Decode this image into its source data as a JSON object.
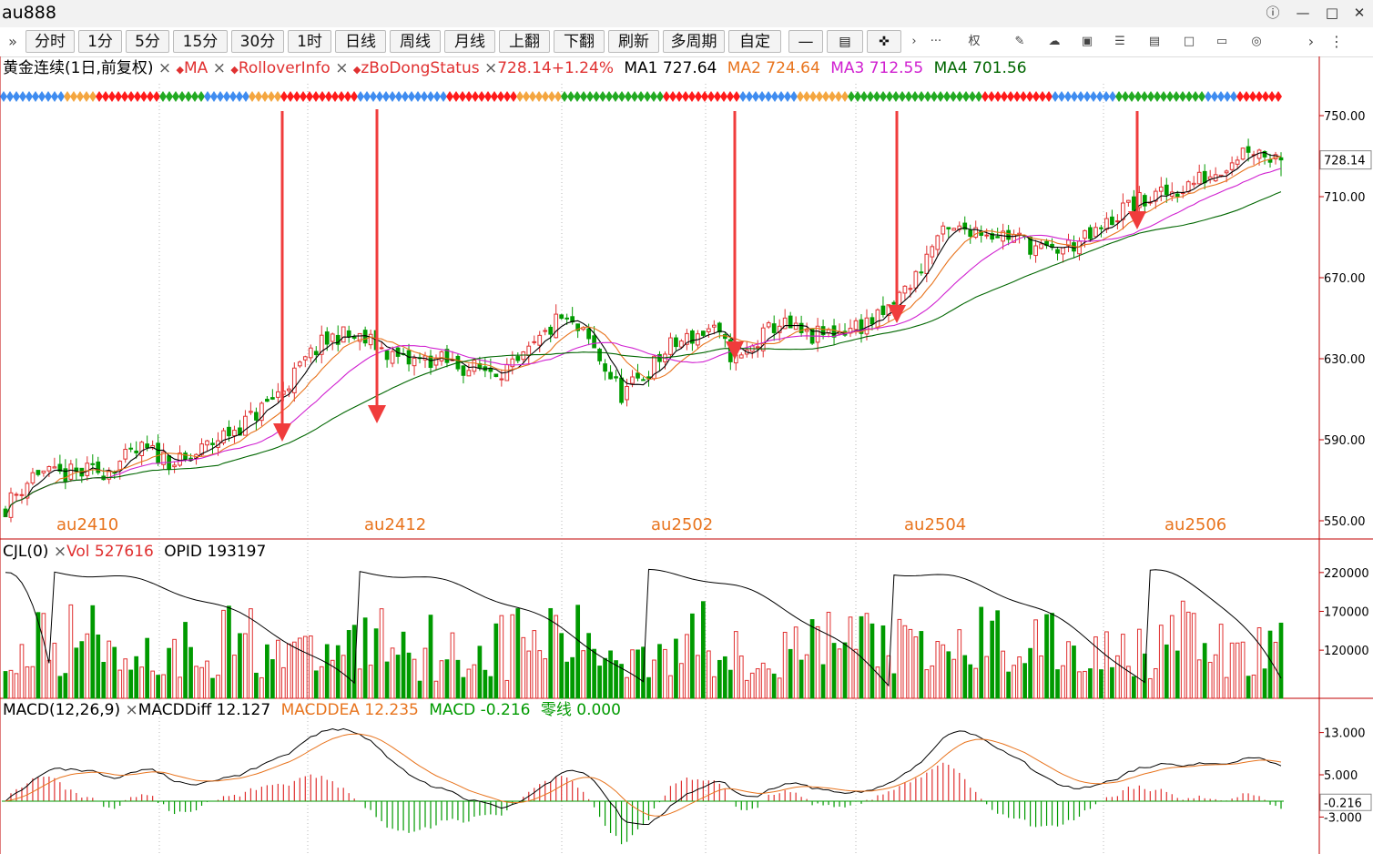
{
  "window": {
    "title": "au888"
  },
  "toolbar": {
    "expand_icon": "double-chevron-right-icon",
    "periods": [
      "分时",
      "1分",
      "5分",
      "15分",
      "30分",
      "1时",
      "日线",
      "周线",
      "月线",
      "上翻",
      "下翻",
      "刷新",
      "多周期",
      "自定"
    ],
    "tools": [
      "line-tool-icon",
      "bar-tool-icon",
      "eraser-tool-icon",
      "chevron-right-icon",
      "more-icon",
      "权",
      "pen-icon",
      "cloud-icon",
      "screenshot-icon",
      "settings-icon",
      "document-icon",
      "window-icon",
      "trash-icon",
      "target-icon",
      "chevron-right-icon",
      "more-vertical-icon"
    ],
    "quan_label": "权"
  },
  "main_legend": {
    "name": "黄金连续(1日,前复权)",
    "close_x": "×",
    "ind1": "MA",
    "ind2": "RolloverInfo",
    "ind3": "zBoDongStatus",
    "price_change": "728.14+1.24%",
    "ma1": "MA1 727.64",
    "ma2": "MA2 724.64",
    "ma3": "MA3 712.55",
    "ma4": "MA4 701.56"
  },
  "vol_legend": {
    "name": "CJL(0)",
    "close_x": "×",
    "vol": "Vol 527616",
    "opid": "OPID 193197"
  },
  "macd_legend": {
    "name": "MACD(12,26,9)",
    "close_x": "×",
    "diff": "MACDDiff 12.127",
    "dea": "MACDDEA 12.235",
    "macd": "MACD -0.216",
    "zero": "零线 0.000"
  },
  "colors": {
    "up": "#e03030",
    "down": "#009a00",
    "ma1": "#000000",
    "ma2": "#e8741e",
    "ma3": "#d020d0",
    "ma4": "#006600",
    "arrow": "#f03c3c",
    "status_red": "#ff1a1a",
    "status_green": "#22aa22",
    "status_blue": "#3f8cf0",
    "status_orange": "#f4a640"
  },
  "price_axis": {
    "ticks": [
      "750.00",
      "710.00",
      "670.00",
      "630.00",
      "590.00",
      "550.00"
    ],
    "current": "728.14"
  },
  "vol_axis": {
    "ticks": [
      "220000",
      "170000",
      "120000"
    ]
  },
  "macd_axis": {
    "ticks": [
      "13.000",
      "5.000",
      "-3.000"
    ],
    "current": "-0.216"
  },
  "contracts": [
    "au2410",
    "au2412",
    "au2502",
    "au2504",
    "au2506"
  ],
  "chart_data": {
    "type": "candlestick",
    "price_min": 545,
    "price_max": 762,
    "ma_periods": {
      "MA1": 5,
      "MA2": 10,
      "MA3": 20,
      "MA4": 40
    },
    "arrow_count": 5
  }
}
